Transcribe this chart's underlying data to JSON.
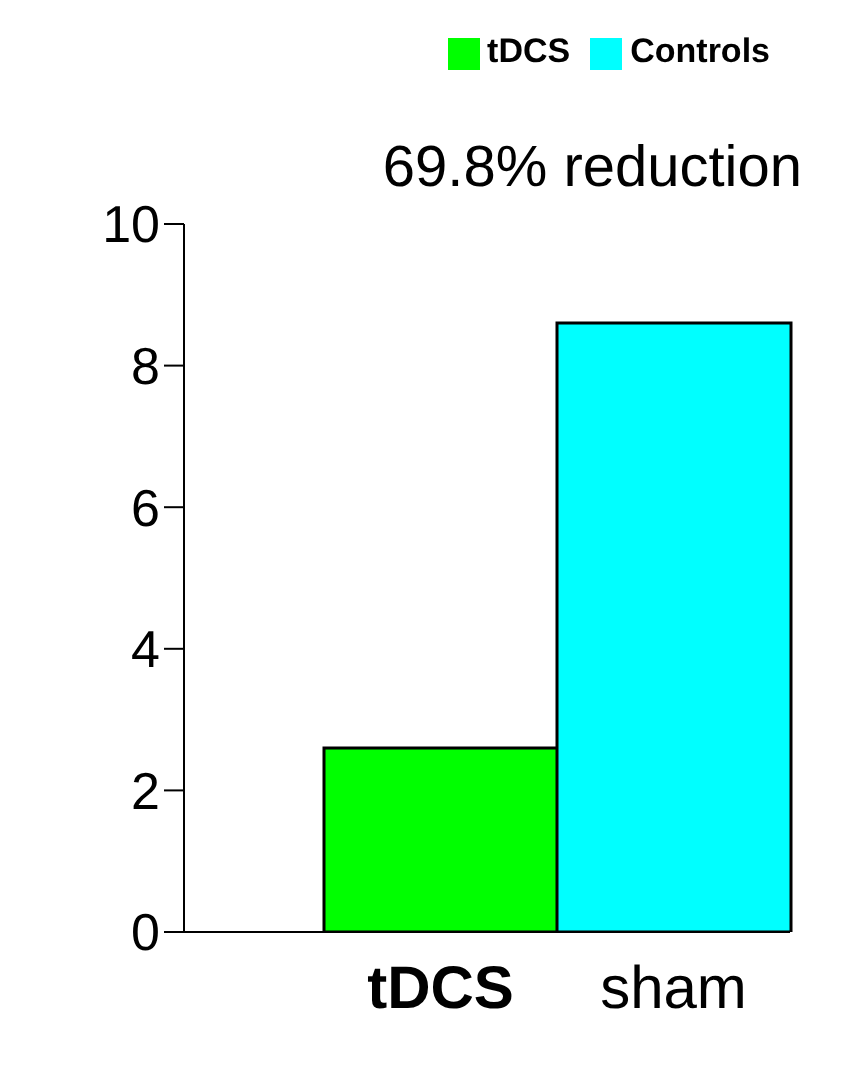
{
  "chart_data": {
    "type": "bar",
    "categories": [
      "tDCS",
      "sham"
    ],
    "stacked": true,
    "legend": "top right",
    "series": [
      {
        "name": "tDCS",
        "color": "#00ff00",
        "values": [
          2.6,
          null
        ]
      },
      {
        "name": "Controls",
        "color": "#00ffff",
        "values": [
          null,
          8.6
        ]
      }
    ],
    "ylim": [
      0,
      10
    ],
    "yticks": [
      0,
      2,
      4,
      6,
      8,
      10
    ],
    "annotations": [
      "69.8% reduction"
    ]
  }
}
